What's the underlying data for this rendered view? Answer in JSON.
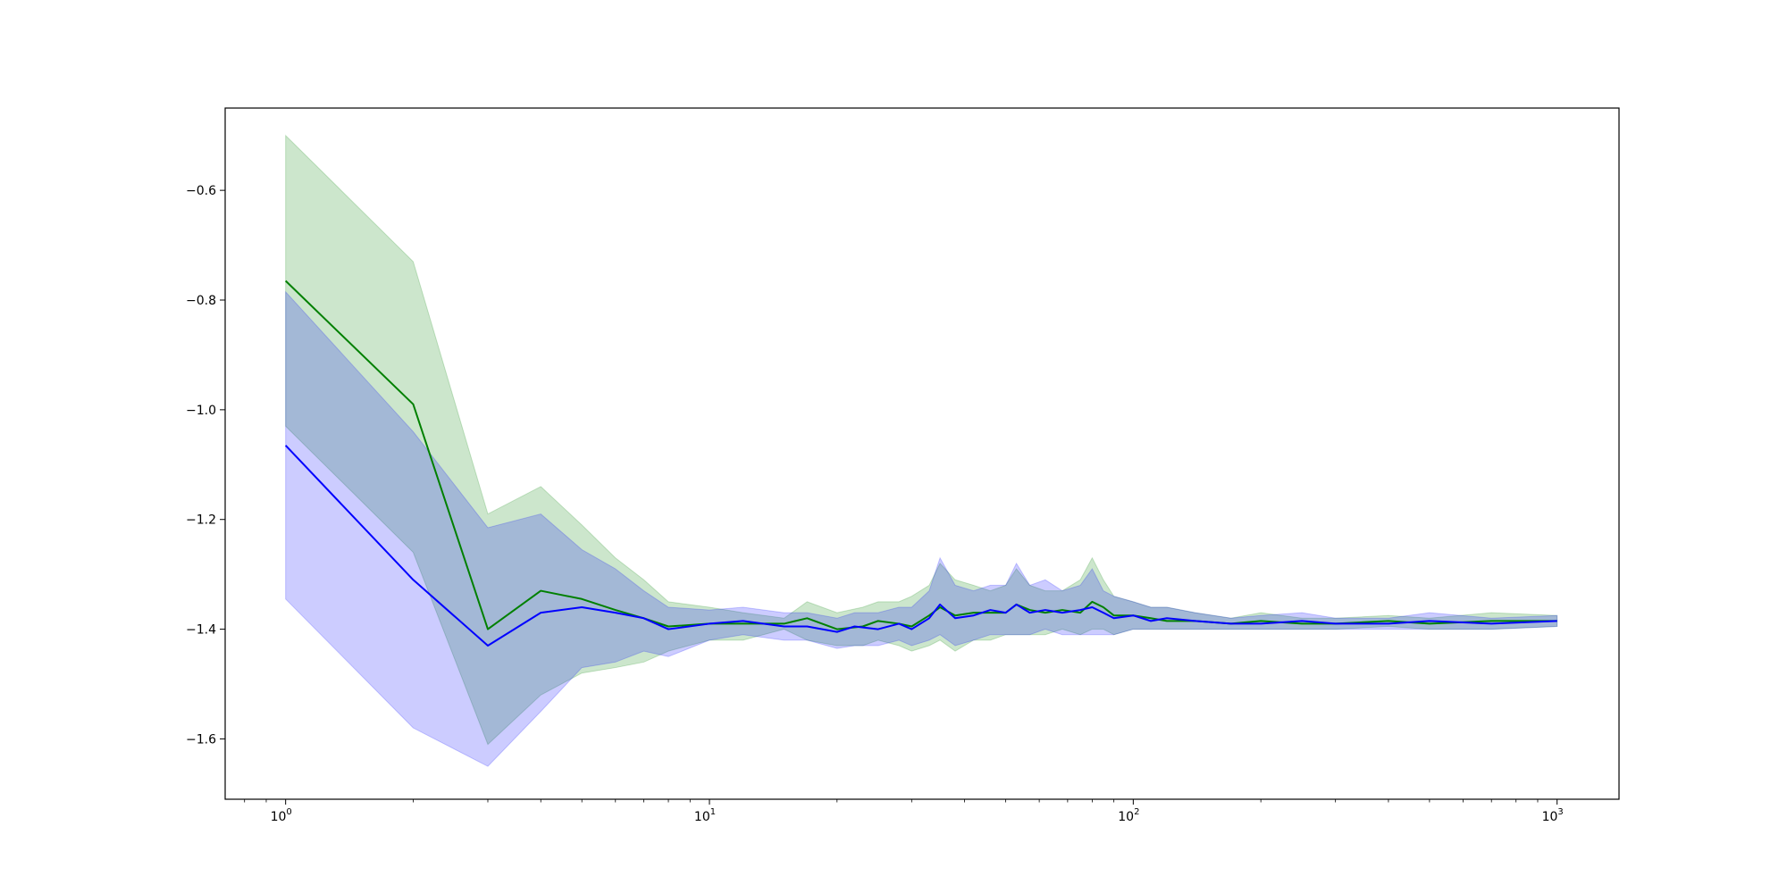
{
  "chart_data": {
    "type": "area",
    "title": "",
    "xlabel": "",
    "ylabel": "",
    "xscale": "log",
    "xlim": [
      0.72,
      1400
    ],
    "ylim": [
      -1.71,
      -0.45
    ],
    "grid": false,
    "legend": "none",
    "x_ticks": [
      {
        "base": "10",
        "exp": "0",
        "value": 1
      },
      {
        "base": "10",
        "exp": "1",
        "value": 10
      },
      {
        "base": "10",
        "exp": "2",
        "value": 100
      },
      {
        "base": "10",
        "exp": "3",
        "value": 1000
      }
    ],
    "y_ticks": [
      {
        "label": "−0.6",
        "value": -0.6
      },
      {
        "label": "−0.8",
        "value": -0.8
      },
      {
        "label": "−1.0",
        "value": -1.0
      },
      {
        "label": "−1.2",
        "value": -1.2
      },
      {
        "label": "−1.4",
        "value": -1.4
      },
      {
        "label": "−1.6",
        "value": -1.6
      }
    ],
    "series": [
      {
        "color": "#008000",
        "band_color": "#008000",
        "band_opacity": 0.2,
        "points": [
          [
            1,
            -0.765,
            -1.03,
            -0.5
          ],
          [
            2,
            -0.99,
            -1.26,
            -0.73
          ],
          [
            3,
            -1.4,
            -1.61,
            -1.19
          ],
          [
            4,
            -1.33,
            -1.52,
            -1.14
          ],
          [
            5,
            -1.345,
            -1.48,
            -1.21
          ],
          [
            6,
            -1.365,
            -1.47,
            -1.27
          ],
          [
            7,
            -1.38,
            -1.46,
            -1.31
          ],
          [
            8,
            -1.395,
            -1.44,
            -1.35
          ],
          [
            10,
            -1.39,
            -1.42,
            -1.36
          ],
          [
            12,
            -1.39,
            -1.42,
            -1.37
          ],
          [
            15,
            -1.39,
            -1.4,
            -1.38
          ],
          [
            17,
            -1.38,
            -1.42,
            -1.35
          ],
          [
            20,
            -1.4,
            -1.43,
            -1.37
          ],
          [
            23,
            -1.395,
            -1.43,
            -1.36
          ],
          [
            25,
            -1.385,
            -1.42,
            -1.35
          ],
          [
            28,
            -1.39,
            -1.43,
            -1.35
          ],
          [
            30,
            -1.395,
            -1.44,
            -1.34
          ],
          [
            33,
            -1.375,
            -1.43,
            -1.32
          ],
          [
            35,
            -1.36,
            -1.42,
            -1.28
          ],
          [
            38,
            -1.375,
            -1.44,
            -1.31
          ],
          [
            42,
            -1.37,
            -1.42,
            -1.32
          ],
          [
            46,
            -1.37,
            -1.42,
            -1.33
          ],
          [
            50,
            -1.37,
            -1.41,
            -1.32
          ],
          [
            53,
            -1.355,
            -1.41,
            -1.29
          ],
          [
            57,
            -1.365,
            -1.41,
            -1.32
          ],
          [
            62,
            -1.37,
            -1.41,
            -1.33
          ],
          [
            68,
            -1.365,
            -1.4,
            -1.33
          ],
          [
            75,
            -1.37,
            -1.41,
            -1.31
          ],
          [
            80,
            -1.35,
            -1.4,
            -1.27
          ],
          [
            85,
            -1.36,
            -1.4,
            -1.31
          ],
          [
            90,
            -1.375,
            -1.41,
            -1.34
          ],
          [
            100,
            -1.375,
            -1.4,
            -1.35
          ],
          [
            110,
            -1.38,
            -1.4,
            -1.36
          ],
          [
            120,
            -1.385,
            -1.4,
            -1.36
          ],
          [
            140,
            -1.385,
            -1.4,
            -1.37
          ],
          [
            170,
            -1.39,
            -1.4,
            -1.38
          ],
          [
            200,
            -1.385,
            -1.4,
            -1.37
          ],
          [
            250,
            -1.39,
            -1.4,
            -1.38
          ],
          [
            300,
            -1.39,
            -1.4,
            -1.38
          ],
          [
            400,
            -1.385,
            -1.395,
            -1.375
          ],
          [
            500,
            -1.39,
            -1.4,
            -1.38
          ],
          [
            700,
            -1.385,
            -1.4,
            -1.37
          ],
          [
            1000,
            -1.385,
            -1.395,
            -1.375
          ]
        ]
      },
      {
        "color": "#0000ff",
        "band_color": "#0000ff",
        "band_opacity": 0.2,
        "points": [
          [
            1,
            -1.065,
            -1.345,
            -0.785
          ],
          [
            2,
            -1.31,
            -1.58,
            -1.04
          ],
          [
            3,
            -1.43,
            -1.65,
            -1.215
          ],
          [
            4,
            -1.37,
            -1.55,
            -1.19
          ],
          [
            5,
            -1.36,
            -1.47,
            -1.255
          ],
          [
            6,
            -1.37,
            -1.46,
            -1.29
          ],
          [
            7,
            -1.38,
            -1.44,
            -1.33
          ],
          [
            8,
            -1.4,
            -1.45,
            -1.36
          ],
          [
            10,
            -1.39,
            -1.42,
            -1.365
          ],
          [
            12,
            -1.385,
            -1.41,
            -1.36
          ],
          [
            15,
            -1.395,
            -1.42,
            -1.37
          ],
          [
            17,
            -1.395,
            -1.42,
            -1.37
          ],
          [
            20,
            -1.405,
            -1.435,
            -1.38
          ],
          [
            22,
            -1.395,
            -1.43,
            -1.37
          ],
          [
            25,
            -1.4,
            -1.43,
            -1.37
          ],
          [
            28,
            -1.39,
            -1.42,
            -1.36
          ],
          [
            30,
            -1.4,
            -1.43,
            -1.36
          ],
          [
            33,
            -1.38,
            -1.42,
            -1.33
          ],
          [
            35,
            -1.355,
            -1.41,
            -1.27
          ],
          [
            38,
            -1.38,
            -1.43,
            -1.32
          ],
          [
            42,
            -1.375,
            -1.42,
            -1.33
          ],
          [
            46,
            -1.365,
            -1.41,
            -1.32
          ],
          [
            50,
            -1.37,
            -1.41,
            -1.32
          ],
          [
            53,
            -1.355,
            -1.41,
            -1.28
          ],
          [
            57,
            -1.37,
            -1.41,
            -1.32
          ],
          [
            62,
            -1.365,
            -1.4,
            -1.31
          ],
          [
            68,
            -1.37,
            -1.41,
            -1.33
          ],
          [
            75,
            -1.365,
            -1.41,
            -1.32
          ],
          [
            80,
            -1.36,
            -1.41,
            -1.29
          ],
          [
            85,
            -1.37,
            -1.41,
            -1.33
          ],
          [
            90,
            -1.38,
            -1.41,
            -1.34
          ],
          [
            100,
            -1.375,
            -1.4,
            -1.35
          ],
          [
            110,
            -1.385,
            -1.4,
            -1.36
          ],
          [
            120,
            -1.38,
            -1.4,
            -1.36
          ],
          [
            140,
            -1.385,
            -1.4,
            -1.37
          ],
          [
            170,
            -1.39,
            -1.4,
            -1.38
          ],
          [
            200,
            -1.39,
            -1.4,
            -1.375
          ],
          [
            250,
            -1.385,
            -1.4,
            -1.37
          ],
          [
            300,
            -1.39,
            -1.4,
            -1.38
          ],
          [
            400,
            -1.39,
            -1.4,
            -1.38
          ],
          [
            500,
            -1.385,
            -1.4,
            -1.37
          ],
          [
            700,
            -1.39,
            -1.4,
            -1.38
          ],
          [
            1000,
            -1.385,
            -1.395,
            -1.375
          ]
        ]
      }
    ]
  }
}
